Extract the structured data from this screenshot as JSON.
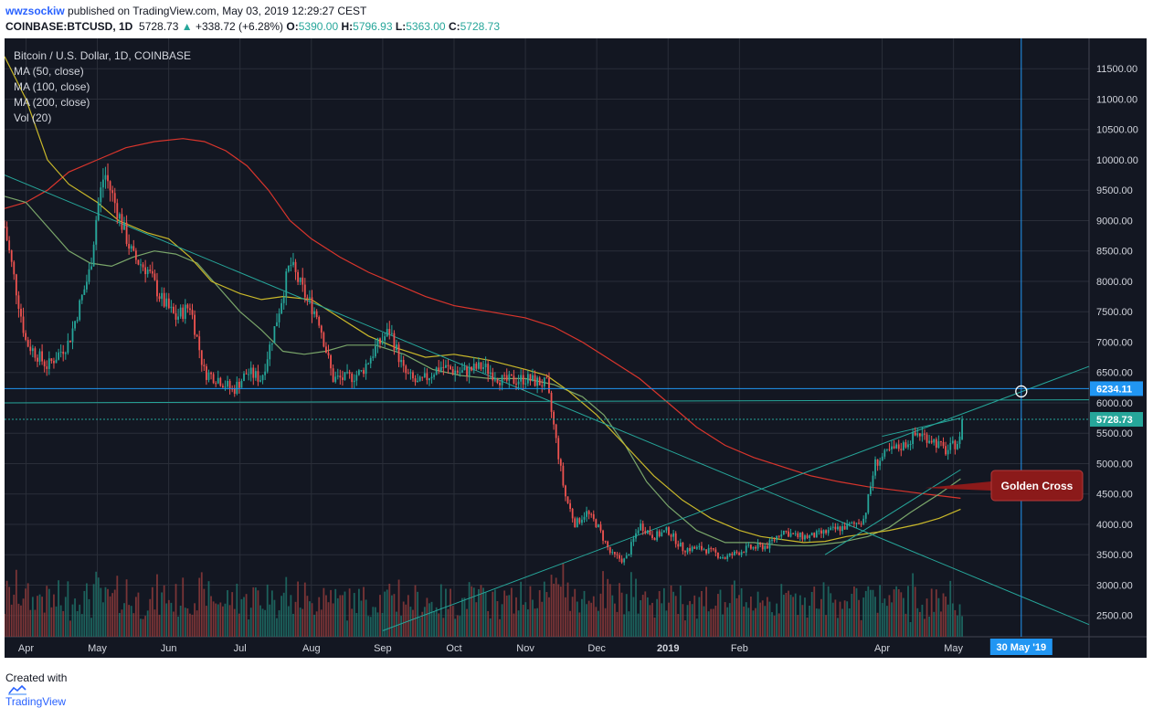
{
  "header": {
    "author": "wwzsockiw",
    "published_text": "published on TradingView.com, May 03, 2019 12:29:27 CEST",
    "symbol": "COINBASE:BTCUSD, 1D",
    "price": "5728.73",
    "change": "+338.72 (+6.28%)",
    "o_label": "O:",
    "o_value": "5390.00",
    "h_label": "H:",
    "h_value": "5796.93",
    "l_label": "L:",
    "l_value": "5363.00",
    "c_label": "C:",
    "c_value": "5728.73"
  },
  "legend": {
    "title": "Bitcoin / U.S. Dollar, 1D, COINBASE",
    "items": [
      "MA (50, close)",
      "MA (100, close)",
      "MA (200, close)",
      "Vol (20)"
    ]
  },
  "footer": {
    "created_with": "Created with",
    "brand": "TradingView",
    "logo_icon": "tradingview-cloud-icon"
  },
  "colors": {
    "background": "#131722",
    "up": "#26a69a",
    "down": "#ef5350",
    "ma50": "#c9b82a",
    "ma100": "#7aa66a",
    "ma200": "#d9352c",
    "trendline": "#26a69a",
    "hline": "#2196f3",
    "vline": "#2196f3",
    "callout": "#8b1a1a"
  },
  "chart_data": {
    "type": "candlestick",
    "title": "Bitcoin / U.S. Dollar, 1D, COINBASE",
    "ylim": [
      2150,
      12000
    ],
    "y_ticks": [
      2500,
      3000,
      3500,
      4000,
      4500,
      5000,
      5500,
      6000,
      6500,
      7000,
      7500,
      8000,
      8500,
      9000,
      9500,
      10000,
      10500,
      11000,
      11500
    ],
    "y_tick_labels": [
      "2500.00",
      "3000.00",
      "3500.00",
      "4000.00",
      "4500.00",
      "5000.00",
      "5500.00",
      "6000.00",
      "6500.00",
      "7000.00",
      "7500.00",
      "8000.00",
      "8500.00",
      "9000.00",
      "9500.00",
      "10000.00",
      "10500.00",
      "11000.00",
      "11500.00"
    ],
    "x_months": [
      {
        "label": "Apr",
        "month_index": 0
      },
      {
        "label": "May",
        "month_index": 1
      },
      {
        "label": "Jun",
        "month_index": 2
      },
      {
        "label": "Jul",
        "month_index": 3
      },
      {
        "label": "Aug",
        "month_index": 4
      },
      {
        "label": "Sep",
        "month_index": 5
      },
      {
        "label": "Oct",
        "month_index": 6
      },
      {
        "label": "Nov",
        "month_index": 7
      },
      {
        "label": "Dec",
        "month_index": 8
      },
      {
        "label": "2019",
        "month_index": 9
      },
      {
        "label": "Feb",
        "month_index": 10
      },
      {
        "label": "Apr",
        "month_index": 12
      },
      {
        "label": "May",
        "month_index": 13
      }
    ],
    "x_range_months": [
      -0.3,
      14.9
    ],
    "price_points": [
      [
        -0.3,
        8900
      ],
      [
        0.0,
        7000
      ],
      [
        0.3,
        6600
      ],
      [
        0.6,
        7000
      ],
      [
        0.9,
        8200
      ],
      [
        1.0,
        9200
      ],
      [
        1.1,
        9800
      ],
      [
        1.3,
        9100
      ],
      [
        1.5,
        8400
      ],
      [
        1.7,
        8200
      ],
      [
        1.9,
        7700
      ],
      [
        2.1,
        7400
      ],
      [
        2.3,
        7600
      ],
      [
        2.5,
        6500
      ],
      [
        2.7,
        6400
      ],
      [
        2.9,
        6200
      ],
      [
        3.1,
        6500
      ],
      [
        3.3,
        6400
      ],
      [
        3.5,
        7300
      ],
      [
        3.7,
        8300
      ],
      [
        3.9,
        7800
      ],
      [
        4.1,
        7400
      ],
      [
        4.3,
        6400
      ],
      [
        4.5,
        6400
      ],
      [
        4.7,
        6500
      ],
      [
        4.9,
        6900
      ],
      [
        5.1,
        7200
      ],
      [
        5.3,
        6500
      ],
      [
        5.5,
        6300
      ],
      [
        5.8,
        6600
      ],
      [
        6.1,
        6500
      ],
      [
        6.4,
        6600
      ],
      [
        6.7,
        6350
      ],
      [
        7.0,
        6400
      ],
      [
        7.3,
        6300
      ],
      [
        7.4,
        5600
      ],
      [
        7.55,
        4500
      ],
      [
        7.7,
        4000
      ],
      [
        7.85,
        4200
      ],
      [
        8.0,
        4000
      ],
      [
        8.2,
        3500
      ],
      [
        8.4,
        3400
      ],
      [
        8.6,
        4000
      ],
      [
        8.8,
        3800
      ],
      [
        9.0,
        3900
      ],
      [
        9.2,
        3600
      ],
      [
        9.5,
        3600
      ],
      [
        9.8,
        3450
      ],
      [
        10.1,
        3600
      ],
      [
        10.4,
        3650
      ],
      [
        10.6,
        3900
      ],
      [
        10.8,
        3800
      ],
      [
        11.0,
        3800
      ],
      [
        11.3,
        3900
      ],
      [
        11.6,
        4000
      ],
      [
        11.75,
        4100
      ],
      [
        11.9,
        5000
      ],
      [
        12.1,
        5200
      ],
      [
        12.3,
        5300
      ],
      [
        12.5,
        5500
      ],
      [
        12.7,
        5400
      ],
      [
        12.9,
        5200
      ],
      [
        13.1,
        5400
      ],
      [
        13.14,
        5728.73
      ]
    ],
    "last_price": 5728.73,
    "last_price_label": "5728.73",
    "hline_level": 6234.11,
    "hline_label": "6234.11",
    "vline_label": "30 May '19",
    "vline_month": 13.95,
    "ma50": [
      [
        -0.3,
        11700
      ],
      [
        0.0,
        11000
      ],
      [
        0.3,
        10000
      ],
      [
        0.6,
        9600
      ],
      [
        1.0,
        9300
      ],
      [
        1.3,
        9000
      ],
      [
        1.7,
        8800
      ],
      [
        2.0,
        8700
      ],
      [
        2.3,
        8400
      ],
      [
        2.6,
        8000
      ],
      [
        3.0,
        7800
      ],
      [
        3.3,
        7700
      ],
      [
        3.6,
        7750
      ],
      [
        4.0,
        7700
      ],
      [
        4.4,
        7400
      ],
      [
        4.8,
        7100
      ],
      [
        5.2,
        6900
      ],
      [
        5.6,
        6750
      ],
      [
        6.0,
        6800
      ],
      [
        6.5,
        6700
      ],
      [
        7.0,
        6550
      ],
      [
        7.3,
        6450
      ],
      [
        7.6,
        6200
      ],
      [
        8.0,
        5800
      ],
      [
        8.4,
        5300
      ],
      [
        8.8,
        4800
      ],
      [
        9.2,
        4400
      ],
      [
        9.6,
        4100
      ],
      [
        10.0,
        3900
      ],
      [
        10.3,
        3800
      ],
      [
        10.6,
        3750
      ],
      [
        10.9,
        3700
      ],
      [
        11.2,
        3720
      ],
      [
        11.5,
        3800
      ],
      [
        11.8,
        3850
      ],
      [
        12.1,
        3900
      ],
      [
        12.5,
        4000
      ],
      [
        12.8,
        4100
      ],
      [
        13.1,
        4250
      ]
    ],
    "ma100": [
      [
        -0.3,
        9400
      ],
      [
        0.0,
        9300
      ],
      [
        0.3,
        8900
      ],
      [
        0.6,
        8500
      ],
      [
        0.9,
        8300
      ],
      [
        1.2,
        8250
      ],
      [
        1.5,
        8400
      ],
      [
        1.8,
        8500
      ],
      [
        2.1,
        8450
      ],
      [
        2.4,
        8300
      ],
      [
        2.7,
        7900
      ],
      [
        3.0,
        7500
      ],
      [
        3.3,
        7200
      ],
      [
        3.6,
        6850
      ],
      [
        3.9,
        6800
      ],
      [
        4.2,
        6850
      ],
      [
        4.5,
        6950
      ],
      [
        4.9,
        6950
      ],
      [
        5.3,
        6800
      ],
      [
        5.7,
        6550
      ],
      [
        6.1,
        6450
      ],
      [
        6.5,
        6400
      ],
      [
        7.0,
        6400
      ],
      [
        7.4,
        6300
      ],
      [
        7.8,
        6100
      ],
      [
        8.1,
        5800
      ],
      [
        8.4,
        5300
      ],
      [
        8.7,
        4700
      ],
      [
        9.0,
        4300
      ],
      [
        9.4,
        3900
      ],
      [
        9.8,
        3700
      ],
      [
        10.2,
        3700
      ],
      [
        10.6,
        3650
      ],
      [
        11.0,
        3650
      ],
      [
        11.4,
        3700
      ],
      [
        11.8,
        3800
      ],
      [
        12.1,
        3950
      ],
      [
        12.4,
        4200
      ],
      [
        12.8,
        4500
      ],
      [
        13.1,
        4750
      ]
    ],
    "ma200": [
      [
        -0.3,
        9200
      ],
      [
        0.0,
        9300
      ],
      [
        0.3,
        9500
      ],
      [
        0.6,
        9800
      ],
      [
        1.0,
        10000
      ],
      [
        1.4,
        10200
      ],
      [
        1.8,
        10300
      ],
      [
        2.2,
        10350
      ],
      [
        2.5,
        10300
      ],
      [
        2.8,
        10150
      ],
      [
        3.1,
        9900
      ],
      [
        3.4,
        9500
      ],
      [
        3.7,
        9000
      ],
      [
        4.0,
        8700
      ],
      [
        4.4,
        8400
      ],
      [
        4.8,
        8150
      ],
      [
        5.2,
        7950
      ],
      [
        5.6,
        7750
      ],
      [
        6.0,
        7600
      ],
      [
        6.5,
        7500
      ],
      [
        7.0,
        7400
      ],
      [
        7.4,
        7250
      ],
      [
        7.8,
        7000
      ],
      [
        8.2,
        6700
      ],
      [
        8.6,
        6400
      ],
      [
        9.0,
        6000
      ],
      [
        9.4,
        5600
      ],
      [
        9.8,
        5300
      ],
      [
        10.2,
        5100
      ],
      [
        10.6,
        4950
      ],
      [
        11.0,
        4800
      ],
      [
        11.4,
        4700
      ],
      [
        11.8,
        4620
      ],
      [
        12.2,
        4560
      ],
      [
        12.6,
        4500
      ],
      [
        13.1,
        4430
      ]
    ],
    "volume_max_label": "",
    "annotation": {
      "text": "Golden Cross",
      "pointer_month": 12.6,
      "pointer_price": 4600
    },
    "trendlines": [
      {
        "from": [
          -0.3,
          9750
        ],
        "to": [
          14.9,
          2350
        ]
      },
      {
        "from": [
          5.0,
          2250
        ],
        "to": [
          14.9,
          6600
        ]
      },
      {
        "from": [
          11.2,
          3500
        ],
        "to": [
          13.1,
          4900
        ]
      },
      {
        "from": [
          -0.3,
          6000
        ],
        "to": [
          14.9,
          6050
        ]
      },
      {
        "from": [
          12.0,
          5450
        ],
        "to": [
          13.1,
          5750
        ]
      }
    ]
  }
}
